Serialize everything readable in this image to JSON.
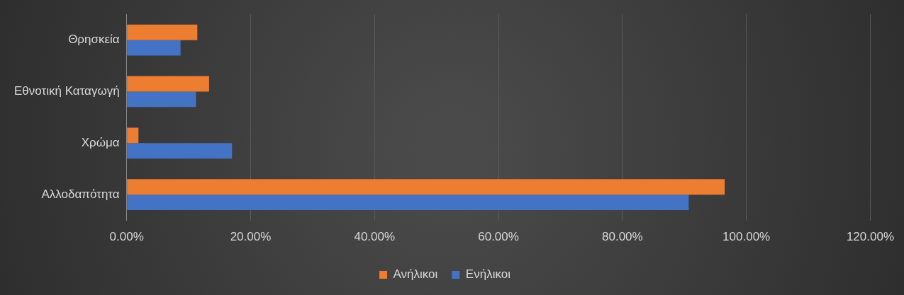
{
  "chart_data": {
    "type": "bar",
    "orientation": "horizontal",
    "categories": [
      "Θρησκεία",
      "Εθνοτική Καταγωγή",
      "Χρώμα",
      "Αλλοδαπότητα"
    ],
    "series": [
      {
        "name": "Ανήλικοι",
        "color": "#ed7d31",
        "values": [
          11.4,
          13.3,
          1.9,
          96.5
        ]
      },
      {
        "name": "Ενήλικοι",
        "color": "#4472c4",
        "values": [
          8.7,
          11.2,
          17.0,
          90.7
        ]
      }
    ],
    "xlim": [
      0,
      120
    ],
    "xticks": [
      {
        "value": 0,
        "label": "0.00%"
      },
      {
        "value": 20,
        "label": "20.00%"
      },
      {
        "value": 40,
        "label": "40.00%"
      },
      {
        "value": 60,
        "label": "60.00%"
      },
      {
        "value": 80,
        "label": "80.00%"
      },
      {
        "value": 100,
        "label": "100.00%"
      },
      {
        "value": 120,
        "label": "120.00%"
      }
    ],
    "grid": "x",
    "legend": "bottom"
  }
}
